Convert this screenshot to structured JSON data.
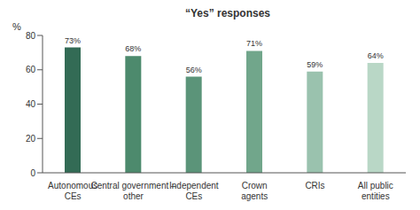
{
  "chart_data": {
    "type": "bar",
    "title": "“Yes” responses",
    "y_label": "%",
    "categories": [
      "Autonomous CEs",
      "Central government – other",
      "Independent CEs",
      "Crown agents",
      "CRIs",
      "All public entities"
    ],
    "values": [
      73,
      68,
      56,
      71,
      59,
      64
    ],
    "value_labels": [
      "73%",
      "68%",
      "56%",
      "71%",
      "59%",
      "64%"
    ],
    "colors": [
      "#336b55",
      "#4d8a6d",
      "#5b9479",
      "#71a68b",
      "#9ac2ae",
      "#b9d7c6"
    ],
    "ylim": [
      0,
      80
    ],
    "yticks": [
      0,
      20,
      40,
      60,
      80
    ],
    "grid": false,
    "data_labels": true
  }
}
